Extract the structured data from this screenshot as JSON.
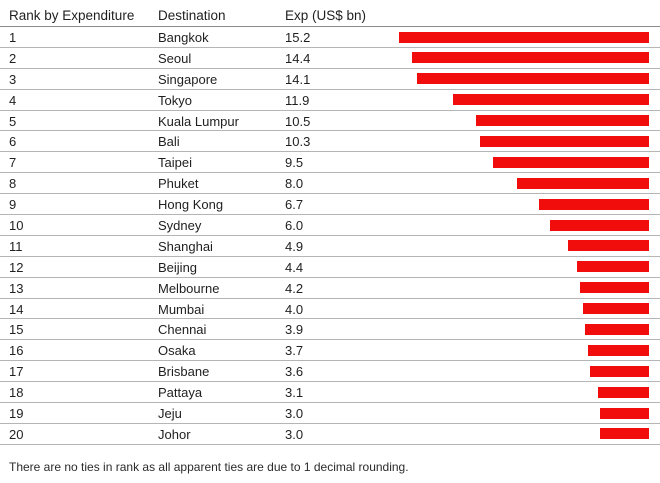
{
  "chart_data": {
    "type": "table",
    "columns": [
      "Rank by Expenditure",
      "Destination",
      "Exp (US$ bn)"
    ],
    "bar_color": "#f20d0d",
    "bar_max_value": 15.2,
    "rows": [
      {
        "rank": "1",
        "destination": "Bangkok",
        "exp": 15.2,
        "exp_label": "15.2"
      },
      {
        "rank": "2",
        "destination": "Seoul",
        "exp": 14.4,
        "exp_label": "14.4"
      },
      {
        "rank": "3",
        "destination": "Singapore",
        "exp": 14.1,
        "exp_label": "14.1"
      },
      {
        "rank": "4",
        "destination": "Tokyo",
        "exp": 11.9,
        "exp_label": "11.9"
      },
      {
        "rank": "5",
        "destination": "Kuala Lumpur",
        "exp": 10.5,
        "exp_label": "10.5"
      },
      {
        "rank": "6",
        "destination": "Bali",
        "exp": 10.3,
        "exp_label": "10.3"
      },
      {
        "rank": "7",
        "destination": "Taipei",
        "exp": 9.5,
        "exp_label": "9.5"
      },
      {
        "rank": "8",
        "destination": "Phuket",
        "exp": 8.0,
        "exp_label": "8.0"
      },
      {
        "rank": "9",
        "destination": "Hong Kong",
        "exp": 6.7,
        "exp_label": "6.7"
      },
      {
        "rank": "10",
        "destination": "Sydney",
        "exp": 6.0,
        "exp_label": "6.0"
      },
      {
        "rank": "11",
        "destination": "Shanghai",
        "exp": 4.9,
        "exp_label": "4.9"
      },
      {
        "rank": "12",
        "destination": "Beijing",
        "exp": 4.4,
        "exp_label": "4.4"
      },
      {
        "rank": "13",
        "destination": "Melbourne",
        "exp": 4.2,
        "exp_label": "4.2"
      },
      {
        "rank": "14",
        "destination": "Mumbai",
        "exp": 4.0,
        "exp_label": "4.0"
      },
      {
        "rank": "15",
        "destination": "Chennai",
        "exp": 3.9,
        "exp_label": "3.9"
      },
      {
        "rank": "16",
        "destination": "Osaka",
        "exp": 3.7,
        "exp_label": "3.7"
      },
      {
        "rank": "17",
        "destination": "Brisbane",
        "exp": 3.6,
        "exp_label": "3.6"
      },
      {
        "rank": "18",
        "destination": "Pattaya",
        "exp": 3.1,
        "exp_label": "3.1"
      },
      {
        "rank": "19",
        "destination": "Jeju",
        "exp": 3.0,
        "exp_label": "3.0"
      },
      {
        "rank": "20",
        "destination": "Johor",
        "exp": 3.0,
        "exp_label": "3.0"
      }
    ],
    "footnote": "There are no ties in rank as all apparent ties are due to 1 decimal rounding."
  }
}
